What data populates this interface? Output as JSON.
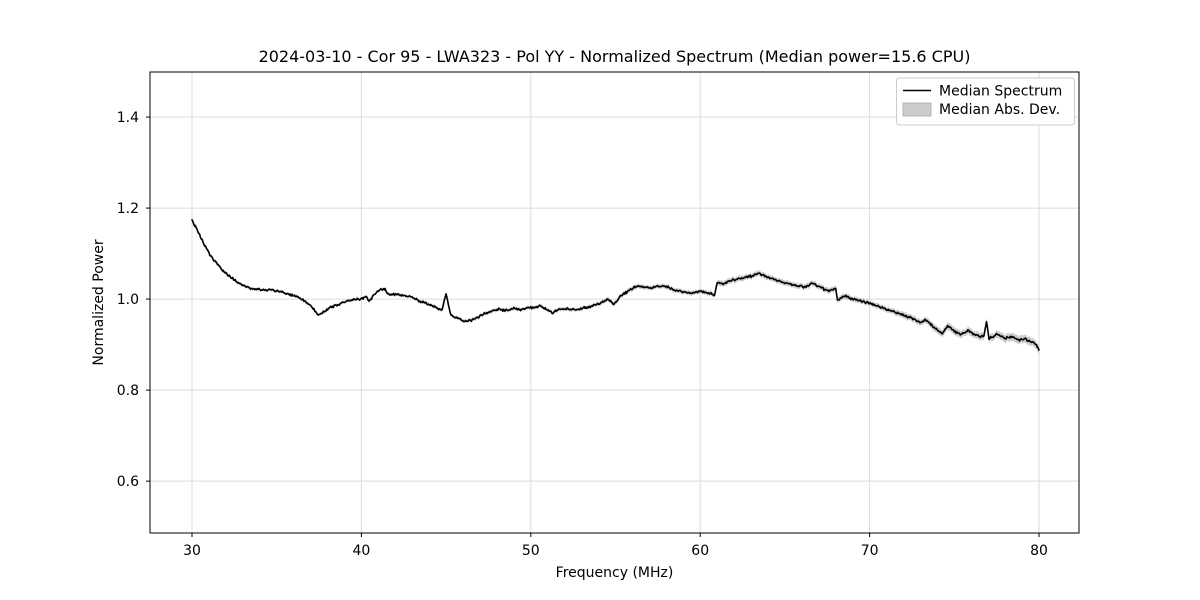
{
  "chart_data": {
    "type": "line",
    "title": "2024-03-10 - Cor 95 - LWA323 - Pol YY - Normalized Spectrum (Median power=15.6 CPU)",
    "xlabel": "Frequency (MHz)",
    "ylabel": "Normalized Power",
    "median_power_cpu": 15.6,
    "grid": true,
    "legend_position": "upper right",
    "xlim": [
      27.52,
      82.36
    ],
    "ylim": [
      0.486,
      1.499
    ],
    "x_ticks": [
      30,
      40,
      50,
      60,
      70,
      80
    ],
    "y_ticks": [
      0.6,
      0.8,
      1.0,
      1.2,
      1.4
    ],
    "colors": {
      "line": "#000000",
      "band": "#808080",
      "band_alpha": 0.4,
      "grid": "#dcdcdc",
      "frame": "#000000",
      "legend_border": "#cccccc",
      "legend_patch": "#cccccc",
      "legend_patch_edge": "#ababab",
      "text": "#000000"
    },
    "noise_amplitude": 0.0032,
    "sample_step_mhz": 0.05,
    "series": [
      {
        "name": "Median Spectrum",
        "type": "line",
        "color": "#000000",
        "anchors": [
          [
            30.0,
            1.176,
            0.005
          ],
          [
            30.15,
            1.162,
            0.005
          ],
          [
            30.3,
            1.152,
            0.005
          ],
          [
            30.5,
            1.136,
            0.004
          ],
          [
            30.75,
            1.118,
            0.004
          ],
          [
            31.0,
            1.101,
            0.004
          ],
          [
            31.25,
            1.088,
            0.004
          ],
          [
            31.5,
            1.077,
            0.004
          ],
          [
            31.75,
            1.066,
            0.004
          ],
          [
            32.0,
            1.056,
            0.004
          ],
          [
            32.25,
            1.049,
            0.003
          ],
          [
            32.5,
            1.042,
            0.003
          ],
          [
            32.75,
            1.036,
            0.003
          ],
          [
            33.0,
            1.03,
            0.003
          ],
          [
            33.25,
            1.026,
            0.003
          ],
          [
            33.5,
            1.023,
            0.003
          ],
          [
            34.0,
            1.02,
            0.003
          ],
          [
            34.5,
            1.021,
            0.003
          ],
          [
            35.0,
            1.018,
            0.003
          ],
          [
            35.5,
            1.013,
            0.003
          ],
          [
            36.0,
            1.007,
            0.003
          ],
          [
            36.5,
            1.0,
            0.003
          ],
          [
            37.0,
            0.986,
            0.003
          ],
          [
            37.45,
            0.965,
            0.003
          ],
          [
            37.8,
            0.972,
            0.003
          ],
          [
            38.2,
            0.982,
            0.003
          ],
          [
            38.6,
            0.988,
            0.003
          ],
          [
            39.0,
            0.994,
            0.003
          ],
          [
            39.5,
            0.998,
            0.003
          ],
          [
            40.0,
            1.001,
            0.003
          ],
          [
            40.3,
            1.005,
            0.003
          ],
          [
            40.45,
            0.995,
            0.003
          ],
          [
            40.8,
            1.012,
            0.003
          ],
          [
            41.1,
            1.021,
            0.003
          ],
          [
            41.4,
            1.023,
            0.003
          ],
          [
            41.55,
            1.01,
            0.003
          ],
          [
            42.0,
            1.01,
            0.003
          ],
          [
            42.5,
            1.008,
            0.003
          ],
          [
            43.0,
            1.004,
            0.003
          ],
          [
            43.5,
            0.994,
            0.004
          ],
          [
            44.0,
            0.988,
            0.004
          ],
          [
            44.4,
            0.981,
            0.004
          ],
          [
            44.75,
            0.976,
            0.004
          ],
          [
            45.0,
            1.012,
            0.004
          ],
          [
            45.25,
            0.967,
            0.004
          ],
          [
            45.7,
            0.957,
            0.004
          ],
          [
            46.1,
            0.951,
            0.004
          ],
          [
            46.5,
            0.953,
            0.004
          ],
          [
            46.9,
            0.961,
            0.004
          ],
          [
            47.3,
            0.968,
            0.004
          ],
          [
            47.7,
            0.974,
            0.004
          ],
          [
            48.1,
            0.978,
            0.004
          ],
          [
            48.5,
            0.974,
            0.004
          ],
          [
            49.0,
            0.98,
            0.004
          ],
          [
            49.4,
            0.977,
            0.004
          ],
          [
            49.8,
            0.981,
            0.004
          ],
          [
            50.2,
            0.982,
            0.004
          ],
          [
            50.6,
            0.984,
            0.004
          ],
          [
            51.0,
            0.976,
            0.004
          ],
          [
            51.3,
            0.97,
            0.004
          ],
          [
            51.7,
            0.978,
            0.004
          ],
          [
            52.2,
            0.978,
            0.004
          ],
          [
            52.7,
            0.977,
            0.004
          ],
          [
            53.2,
            0.981,
            0.004
          ],
          [
            53.7,
            0.986,
            0.004
          ],
          [
            54.2,
            0.992,
            0.005
          ],
          [
            54.6,
            1.0,
            0.005
          ],
          [
            54.9,
            0.987,
            0.005
          ],
          [
            55.3,
            1.008,
            0.005
          ],
          [
            55.7,
            1.016,
            0.005
          ],
          [
            56.1,
            1.026,
            0.005
          ],
          [
            56.5,
            1.028,
            0.005
          ],
          [
            57.0,
            1.024,
            0.005
          ],
          [
            57.5,
            1.028,
            0.005
          ],
          [
            58.0,
            1.027,
            0.005
          ],
          [
            58.5,
            1.02,
            0.005
          ],
          [
            59.0,
            1.016,
            0.005
          ],
          [
            59.5,
            1.013,
            0.005
          ],
          [
            60.0,
            1.018,
            0.005
          ],
          [
            60.4,
            1.013,
            0.005
          ],
          [
            60.85,
            1.01,
            0.005
          ],
          [
            61.0,
            1.036,
            0.006
          ],
          [
            61.4,
            1.034,
            0.006
          ],
          [
            61.8,
            1.04,
            0.006
          ],
          [
            62.2,
            1.044,
            0.006
          ],
          [
            62.6,
            1.047,
            0.006
          ],
          [
            63.0,
            1.05,
            0.006
          ],
          [
            63.4,
            1.056,
            0.006
          ],
          [
            63.8,
            1.051,
            0.006
          ],
          [
            64.2,
            1.046,
            0.006
          ],
          [
            64.7,
            1.039,
            0.006
          ],
          [
            65.2,
            1.034,
            0.006
          ],
          [
            65.7,
            1.029,
            0.006
          ],
          [
            66.2,
            1.026,
            0.006
          ],
          [
            66.6,
            1.035,
            0.006
          ],
          [
            67.0,
            1.028,
            0.006
          ],
          [
            67.5,
            1.018,
            0.006
          ],
          [
            68.0,
            1.024,
            0.006
          ],
          [
            68.1,
            0.998,
            0.006
          ],
          [
            68.5,
            1.008,
            0.006
          ],
          [
            69.0,
            1.0,
            0.006
          ],
          [
            69.5,
            0.996,
            0.006
          ],
          [
            70.0,
            0.99,
            0.006
          ],
          [
            70.5,
            0.984,
            0.006
          ],
          [
            71.0,
            0.977,
            0.006
          ],
          [
            71.5,
            0.971,
            0.006
          ],
          [
            72.0,
            0.965,
            0.007
          ],
          [
            72.5,
            0.958,
            0.007
          ],
          [
            73.0,
            0.949,
            0.007
          ],
          [
            73.3,
            0.954,
            0.007
          ],
          [
            73.7,
            0.941,
            0.008
          ],
          [
            74.0,
            0.934,
            0.008
          ],
          [
            74.3,
            0.925,
            0.008
          ],
          [
            74.6,
            0.941,
            0.008
          ],
          [
            75.0,
            0.929,
            0.008
          ],
          [
            75.4,
            0.923,
            0.008
          ],
          [
            75.8,
            0.93,
            0.008
          ],
          [
            76.2,
            0.922,
            0.008
          ],
          [
            76.55,
            0.917,
            0.008
          ],
          [
            76.75,
            0.92,
            0.008
          ],
          [
            76.9,
            0.951,
            0.008
          ],
          [
            77.05,
            0.913,
            0.008
          ],
          [
            77.5,
            0.922,
            0.008
          ],
          [
            78.0,
            0.914,
            0.009
          ],
          [
            78.4,
            0.918,
            0.009
          ],
          [
            78.8,
            0.91,
            0.009
          ],
          [
            79.2,
            0.912,
            0.009
          ],
          [
            79.6,
            0.905,
            0.009
          ],
          [
            79.85,
            0.898,
            0.009
          ],
          [
            80.0,
            0.888,
            0.009
          ]
        ]
      },
      {
        "name": "Median Abs. Dev.",
        "type": "band",
        "color": "#808080",
        "alpha": 0.4
      }
    ]
  }
}
